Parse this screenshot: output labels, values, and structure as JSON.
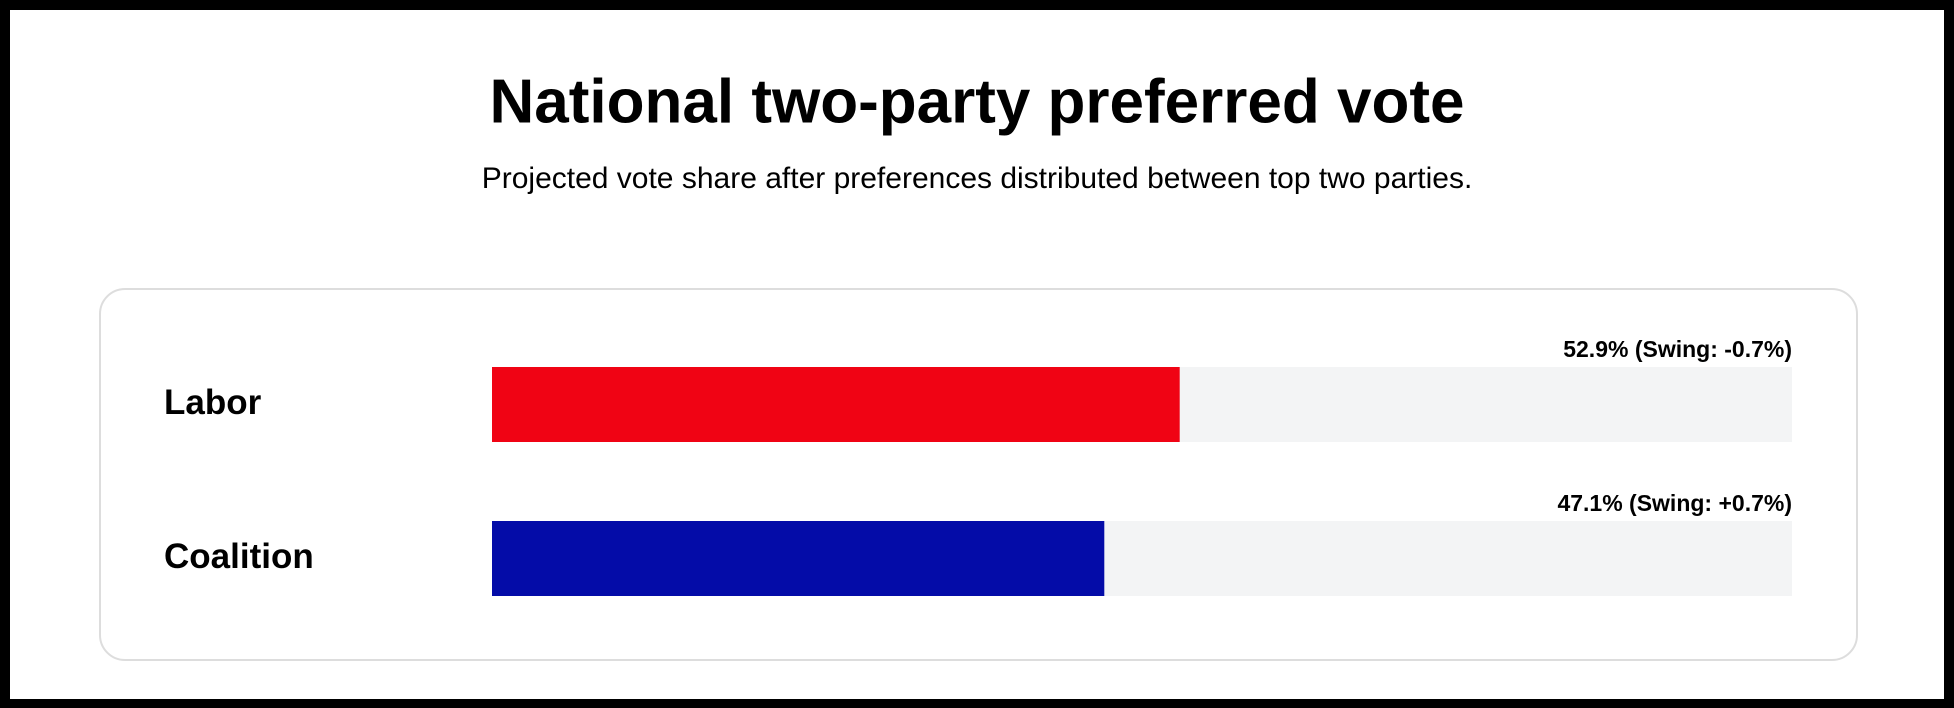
{
  "chart_data": {
    "type": "bar",
    "orientation": "horizontal",
    "title": "National two-party preferred vote",
    "subtitle": "Projected vote share after preferences distributed between top two parties.",
    "categories": [
      "Labor",
      "Coalition"
    ],
    "values": [
      52.9,
      47.1
    ],
    "value_labels": [
      "52.9% (Swing: -0.7%)",
      "47.1% (Swing: +0.7%)"
    ],
    "colors": [
      "#f00314",
      "#040ca8"
    ],
    "xlim": [
      0,
      100
    ]
  }
}
